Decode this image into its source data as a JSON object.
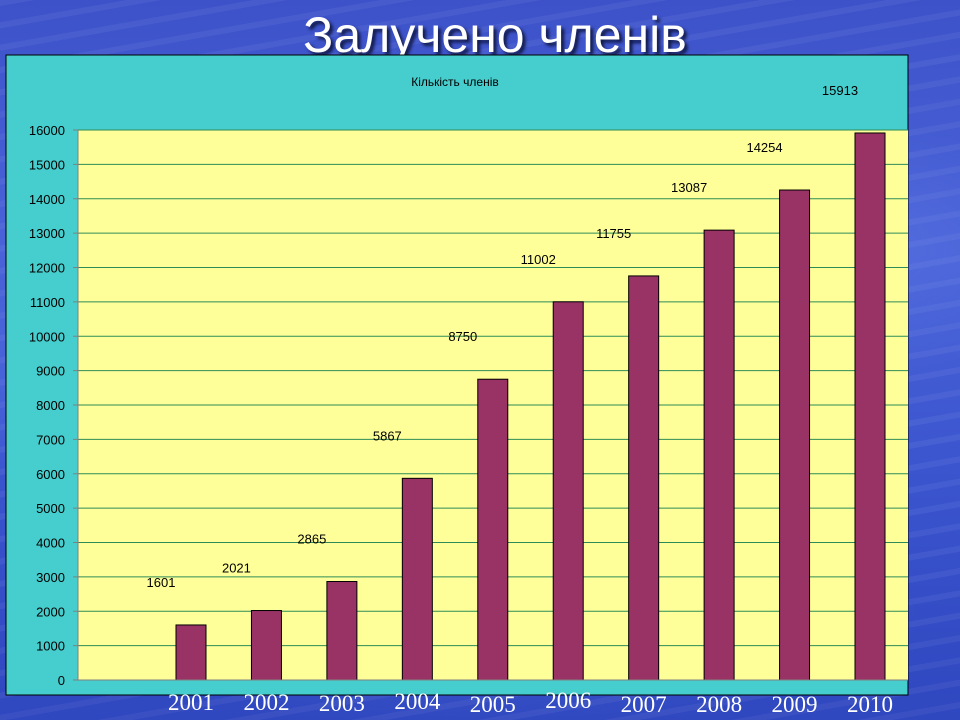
{
  "slide": {
    "title": "Залучено членів"
  },
  "colors": {
    "panel": "#46CDCD",
    "plot_area": "#FFFF99",
    "bar": "#993366",
    "gridline": "#2E8B57",
    "category_text": "#FFFFFF"
  },
  "chart_data": {
    "type": "bar",
    "title": "Кількість членів",
    "categories": [
      "2001",
      "2002",
      "2003",
      "2004",
      "2005",
      "2006",
      "2007",
      "2008",
      "2009",
      "2010"
    ],
    "values": [
      1601,
      2021,
      2865,
      5867,
      8750,
      11002,
      11755,
      13087,
      14254,
      15913
    ],
    "data_labels": [
      "1601",
      "2021",
      "2865",
      "5867",
      "8750",
      "11002",
      "11755",
      "13087",
      "14254",
      "15913"
    ],
    "y_ticks": [
      0,
      1000,
      2000,
      3000,
      4000,
      5000,
      6000,
      7000,
      8000,
      9000,
      10000,
      11000,
      12000,
      13000,
      14000,
      15000,
      16000
    ],
    "ylim": [
      0,
      16000
    ],
    "xlabel": "",
    "ylabel": "",
    "grid": true,
    "legend": "none"
  }
}
